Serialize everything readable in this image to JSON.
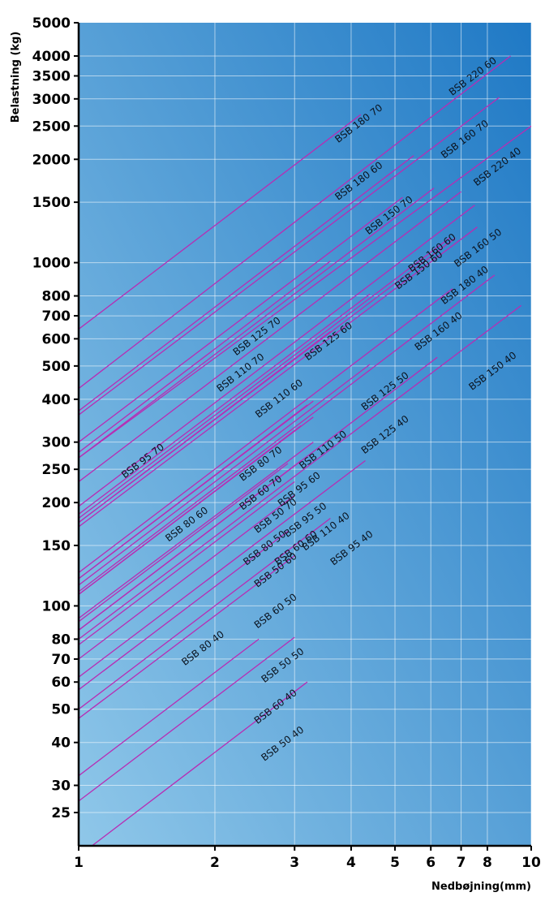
{
  "chart_data": {
    "type": "line",
    "title": "",
    "xlabel": "Nedbøjning(mm)",
    "ylabel": "Belastning (kg)",
    "x_scale": "log",
    "y_scale": "log",
    "xlim": [
      1,
      10
    ],
    "ylim": [
      20,
      5000
    ],
    "grid": true,
    "x_ticks": [
      1,
      2,
      3,
      4,
      5,
      6,
      7,
      8,
      10
    ],
    "y_ticks": [
      25,
      30,
      40,
      50,
      60,
      70,
      80,
      100,
      150,
      200,
      250,
      300,
      400,
      500,
      600,
      700,
      800,
      1000,
      1500,
      2000,
      2500,
      3000,
      3500,
      4000,
      5000
    ],
    "line_color": "#b82cb4",
    "background_gradient": [
      "#1e78c4",
      "#8ec6e8"
    ],
    "series": [
      {
        "name": "BSB 220 60",
        "x": [
          1,
          9
        ],
        "y": [
          430,
          4000
        ]
      },
      {
        "name": "BSB 220 40",
        "x": [
          1,
          10
        ],
        "y": [
          270,
          2500
        ]
      },
      {
        "name": "BSB 180 70",
        "x": [
          1,
          4.2
        ],
        "y": [
          640,
          2700
        ]
      },
      {
        "name": "BSB 180 60",
        "x": [
          1,
          5.5
        ],
        "y": [
          370,
          2050
        ]
      },
      {
        "name": "BSB 180 40",
        "x": [
          1,
          7.6
        ],
        "y": [
          170,
          1270
        ]
      },
      {
        "name": "BSB 160 70",
        "x": [
          1,
          8.5
        ],
        "y": [
          360,
          3030
        ]
      },
      {
        "name": "BSB 160 60",
        "x": [
          1,
          7
        ],
        "y": [
          230,
          1610
        ]
      },
      {
        "name": "BSB 160 50",
        "x": [
          1,
          7.5
        ],
        "y": [
          195,
          1470
        ]
      },
      {
        "name": "BSB 160 40",
        "x": [
          1,
          8.3
        ],
        "y": [
          110,
          920
        ]
      },
      {
        "name": "BSB 150 70",
        "x": [
          1,
          6.1
        ],
        "y": [
          270,
          1650
        ]
      },
      {
        "name": "BSB 150 60",
        "x": [
          1,
          6.6
        ],
        "y": [
          180,
          1180
        ]
      },
      {
        "name": "BSB 150 40",
        "x": [
          1,
          9.5
        ],
        "y": [
          80,
          750
        ]
      },
      {
        "name": "BSB 125 70",
        "x": [
          1,
          5.2
        ],
        "y": [
          300,
          1550
        ]
      },
      {
        "name": "BSB 125 60",
        "x": [
          1,
          6.8
        ],
        "y": [
          175,
          1180
        ]
      },
      {
        "name": "BSB 125 50",
        "x": [
          1,
          6.7
        ],
        "y": [
          125,
          840
        ]
      },
      {
        "name": "BSB 125 40",
        "x": [
          1,
          6.2
        ],
        "y": [
          85,
          530
        ]
      },
      {
        "name": "BSB 110 70",
        "x": [
          1,
          3.6
        ],
        "y": [
          280,
          1010
        ]
      },
      {
        "name": "BSB 110 60",
        "x": [
          1,
          4.4
        ],
        "y": [
          185,
          810
        ]
      },
      {
        "name": "BSB 110 50",
        "x": [
          1,
          4.4
        ],
        "y": [
          115,
          505
        ]
      },
      {
        "name": "BSB 110 40",
        "x": [
          1,
          4.3
        ],
        "y": [
          62,
          265
        ]
      },
      {
        "name": "BSB 95 70",
        "x": [
          1,
          3.6
        ],
        "y": [
          175,
          630
        ]
      },
      {
        "name": "BSB 95 60",
        "x": [
          1,
          3.2
        ],
        "y": [
          120,
          385
        ]
      },
      {
        "name": "BSB 95 50",
        "x": [
          1,
          3.3
        ],
        "y": [
          92,
          300
        ]
      },
      {
        "name": "BSB 95 40",
        "x": [
          1,
          3.6
        ],
        "y": [
          50,
          180
        ]
      },
      {
        "name": "BSB 80 70",
        "x": [
          1,
          3.3
        ],
        "y": [
          120,
          395
        ]
      },
      {
        "name": "BSB 80 60",
        "x": [
          1,
          3.1
        ],
        "y": [
          108,
          335
        ]
      },
      {
        "name": "BSB 80 50",
        "x": [
          1,
          2.9
        ],
        "y": [
          90,
          260
        ]
      },
      {
        "name": "BSB 80 40",
        "x": [
          1,
          3.0
        ],
        "y": [
          47,
          140
        ]
      },
      {
        "name": "BSB 60 70",
        "x": [
          1,
          3.3
        ],
        "y": [
          108,
          355
        ]
      },
      {
        "name": "BSB 60 60",
        "x": [
          1,
          3.0
        ],
        "y": [
          77,
          230
        ]
      },
      {
        "name": "BSB 60 50",
        "x": [
          1,
          2.9
        ],
        "y": [
          57,
          165
        ]
      },
      {
        "name": "BSB 60 40",
        "x": [
          1,
          3.0
        ],
        "y": [
          27,
          81
        ]
      },
      {
        "name": "BSB 50 70",
        "x": [
          1,
          3.1
        ],
        "y": [
          85,
          265
        ]
      },
      {
        "name": "BSB 50 60",
        "x": [
          1,
          3.0
        ],
        "y": [
          70,
          210
        ]
      },
      {
        "name": "BSB 50 50",
        "x": [
          1,
          2.5
        ],
        "y": [
          32,
          80
        ]
      },
      {
        "name": "BSB 50 40",
        "x": [
          1.07,
          3.2
        ],
        "y": [
          20,
          60
        ]
      }
    ],
    "labels": [
      {
        "text": "BSB 220 60",
        "x": 7.5,
        "y": 3430
      },
      {
        "text": "BSB 160 70",
        "x": 7.2,
        "y": 2250
      },
      {
        "text": "BSB 220 40",
        "x": 8.5,
        "y": 1870
      },
      {
        "text": "BSB 180 70",
        "x": 4.2,
        "y": 2500
      },
      {
        "text": "BSB 180 60",
        "x": 4.2,
        "y": 1700
      },
      {
        "text": "BSB 150 70",
        "x": 4.9,
        "y": 1350
      },
      {
        "text": "BSB 160 60",
        "x": 6.1,
        "y": 1050
      },
      {
        "text": "BSB 150 60",
        "x": 5.7,
        "y": 935
      },
      {
        "text": "BSB 160 50",
        "x": 7.7,
        "y": 1085
      },
      {
        "text": "BSB 180 40",
        "x": 7.2,
        "y": 845
      },
      {
        "text": "BSB 160 40",
        "x": 6.3,
        "y": 620
      },
      {
        "text": "BSB 150 40",
        "x": 8.3,
        "y": 475
      },
      {
        "text": "BSB 125 70",
        "x": 2.5,
        "y": 600
      },
      {
        "text": "BSB 110 70",
        "x": 2.3,
        "y": 470
      },
      {
        "text": "BSB 125 60",
        "x": 3.6,
        "y": 580
      },
      {
        "text": "BSB 110 60",
        "x": 2.8,
        "y": 395
      },
      {
        "text": "BSB 125 50",
        "x": 4.8,
        "y": 415
      },
      {
        "text": "BSB 125 40",
        "x": 4.8,
        "y": 310
      },
      {
        "text": "BSB 95 70",
        "x": 1.4,
        "y": 260
      },
      {
        "text": "BSB 80 70",
        "x": 2.55,
        "y": 255
      },
      {
        "text": "BSB 110 50",
        "x": 3.5,
        "y": 280
      },
      {
        "text": "BSB 60 70",
        "x": 2.55,
        "y": 210
      },
      {
        "text": "BSB 95 60",
        "x": 3.1,
        "y": 215
      },
      {
        "text": "BSB 80 60",
        "x": 1.75,
        "y": 170
      },
      {
        "text": "BSB 50 70",
        "x": 2.75,
        "y": 180
      },
      {
        "text": "BSB 95 50",
        "x": 3.2,
        "y": 175
      },
      {
        "text": "BSB 110 40",
        "x": 3.55,
        "y": 162
      },
      {
        "text": "BSB 80 50",
        "x": 2.6,
        "y": 145
      },
      {
        "text": "BSB 60 60",
        "x": 3.05,
        "y": 145
      },
      {
        "text": "BSB 50 60",
        "x": 2.75,
        "y": 125
      },
      {
        "text": "BSB 95 40",
        "x": 4.05,
        "y": 145
      },
      {
        "text": "BSB 60 50",
        "x": 2.75,
        "y": 95
      },
      {
        "text": "BSB 80 40",
        "x": 1.9,
        "y": 74
      },
      {
        "text": "BSB 50 50",
        "x": 2.85,
        "y": 66
      },
      {
        "text": "BSB 60 40",
        "x": 2.75,
        "y": 50
      },
      {
        "text": "BSB 50 40",
        "x": 2.85,
        "y": 39
      }
    ]
  }
}
